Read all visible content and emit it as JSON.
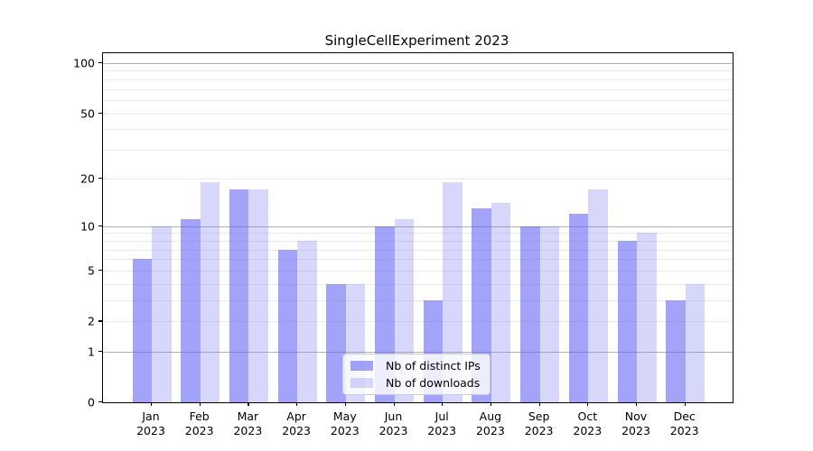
{
  "chart_data": {
    "type": "bar",
    "title": "SingleCellExperiment 2023",
    "categories": [
      "Jan",
      "Feb",
      "Mar",
      "Apr",
      "May",
      "Jun",
      "Jul",
      "Aug",
      "Sep",
      "Oct",
      "Nov",
      "Dec"
    ],
    "year_label": "2023",
    "series": [
      {
        "name": "Nb of distinct IPs",
        "color": "rgba(97,97,244,0.58)",
        "values": [
          6,
          11,
          17,
          7,
          4,
          10,
          3,
          13,
          10,
          12,
          8,
          3
        ]
      },
      {
        "name": "Nb of downloads",
        "color": "rgba(97,97,244,0.25)",
        "values": [
          10,
          19,
          17,
          8,
          4,
          11,
          19,
          14,
          10,
          17,
          9,
          4
        ]
      }
    ],
    "yscale": "log1p",
    "ylim": [
      0,
      114
    ],
    "yticks": [
      100,
      50,
      20,
      10,
      5,
      2,
      1,
      0
    ],
    "major_gridlines": [
      1,
      10,
      100
    ],
    "minor_gridlines": [
      2,
      3,
      4,
      5,
      6,
      7,
      8,
      9,
      20,
      30,
      40,
      50,
      60,
      70,
      80,
      90
    ],
    "grid_colors": {
      "major": "#b3b3b3",
      "minor": "#ebebeb"
    },
    "legend_position": "lower center"
  }
}
